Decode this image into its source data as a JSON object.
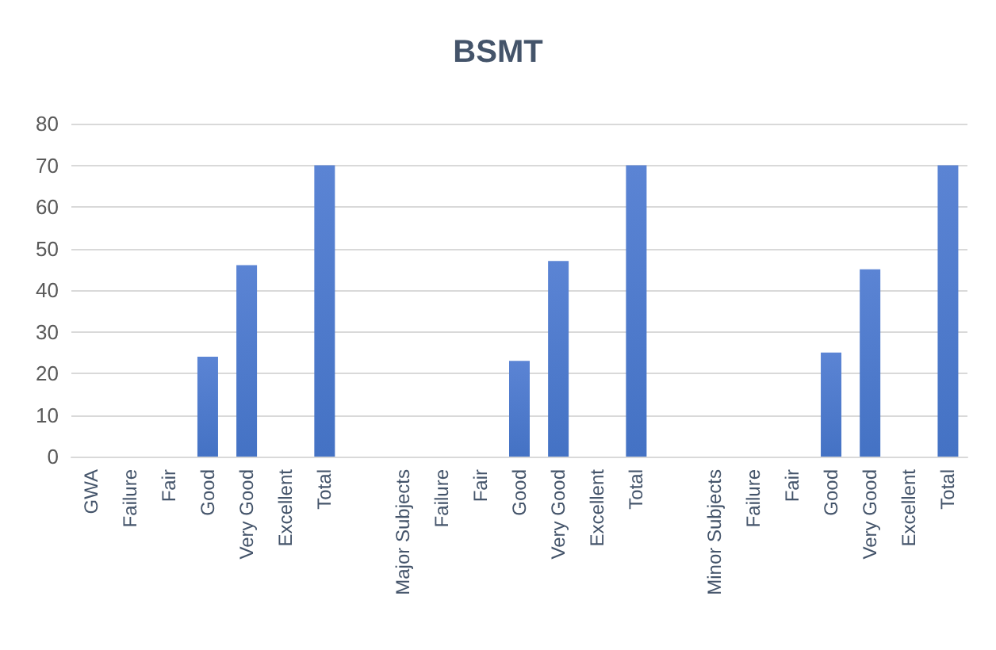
{
  "chart_data": {
    "type": "bar",
    "title": "BSMT",
    "categories": [
      "GWA",
      "Failure",
      "Fair",
      "Good",
      "Very Good",
      "Excellent",
      "Total",
      null,
      "Major Subjects",
      "Failure",
      "Fair",
      "Good",
      "Very Good",
      "Excellent",
      "Total",
      null,
      "Minor Subjects",
      "Failure",
      "Fair",
      "Good",
      "Very Good",
      "Excellent",
      "Total"
    ],
    "values": [
      null,
      null,
      null,
      24,
      46,
      null,
      70,
      null,
      null,
      null,
      null,
      23,
      47,
      null,
      70,
      null,
      null,
      null,
      null,
      25,
      45,
      null,
      70
    ],
    "color": "#4472c4",
    "ylim": [
      0,
      80
    ],
    "yticks": [
      0,
      10,
      20,
      30,
      40,
      50,
      60,
      70,
      80
    ],
    "grid": "y"
  }
}
